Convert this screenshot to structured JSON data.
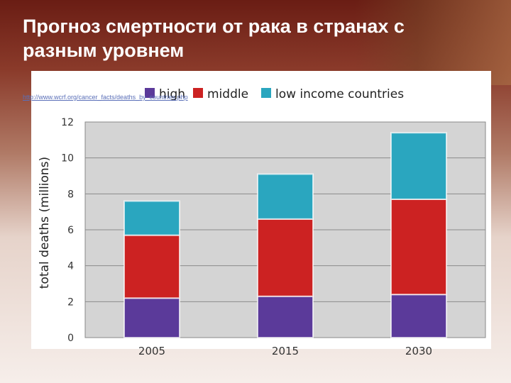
{
  "slide": {
    "title": "Прогноз смертности от рака в странах с разным уровнем",
    "source_link": "http://www.wcrf.org/cancer_facts/deaths_by_countries.php"
  },
  "chart_data": {
    "type": "bar",
    "stacked": true,
    "categories": [
      "2005",
      "2015",
      "2030"
    ],
    "series": [
      {
        "name": "high",
        "values": [
          2.2,
          2.3,
          2.4
        ],
        "color": "#5b3a9a"
      },
      {
        "name": "middle",
        "values": [
          3.5,
          4.3,
          5.3
        ],
        "color": "#cc2222"
      },
      {
        "name": "low income countries",
        "values": [
          1.9,
          2.5,
          3.7
        ],
        "color": "#2aa6bf"
      }
    ],
    "ylabel": "total deaths (millions)",
    "ylim": [
      0,
      12
    ],
    "yticks": [
      0,
      2,
      4,
      6,
      8,
      10,
      12
    ],
    "grid": true,
    "legend_position": "top",
    "plot_background": "#d4d4d4"
  }
}
